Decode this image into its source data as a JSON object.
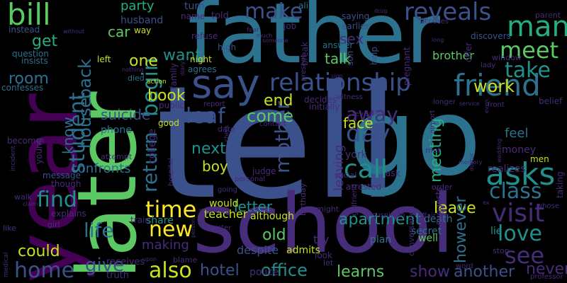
{
  "background": "#000000",
  "palette": {
    "purple": "#440154",
    "violet": "#472c7a",
    "indigo": "#3b518b",
    "blue": "#2c718e",
    "teal": "#21908d",
    "green": "#27ad81",
    "lime": "#5cc863",
    "yellow": "#c8e020",
    "bright_yellow": "#fde725"
  },
  "words": [
    {
      "text": "tell",
      "color": "#3b518b"
    },
    {
      "text": "go",
      "color": "#2c718e"
    },
    {
      "text": "father",
      "color": "#2c718e"
    },
    {
      "text": "year",
      "color": "#440154"
    },
    {
      "text": "later",
      "color": "#5cc863"
    },
    {
      "text": "school",
      "color": "#472c7a"
    },
    {
      "text": "say",
      "color": "#3b518b"
    },
    {
      "text": "bill",
      "color": "#5cc863"
    },
    {
      "text": "friend",
      "color": "#2c718e"
    },
    {
      "text": "relationship",
      "color": "#3b518b"
    },
    {
      "text": "asks",
      "color": "#21908d"
    },
    {
      "text": "reveals",
      "color": "#3b518b"
    },
    {
      "text": "man",
      "color": "#27ad81"
    },
    {
      "text": "make",
      "color": "#3b518b"
    },
    {
      "text": "meet",
      "color": "#5cc863"
    },
    {
      "text": "take",
      "color": "#21908d"
    },
    {
      "text": "day",
      "color": "#3b518b"
    },
    {
      "text": "call",
      "color": "#21908d"
    },
    {
      "text": "visit",
      "color": "#472c7a"
    },
    {
      "text": "class",
      "color": "#2c718e"
    },
    {
      "text": "love",
      "color": "#21908d"
    },
    {
      "text": "see",
      "color": "#472c7a"
    },
    {
      "text": "time",
      "color": "#fde725"
    },
    {
      "text": "new",
      "color": "#fde725"
    },
    {
      "text": "life",
      "color": "#2c718e"
    },
    {
      "text": "home",
      "color": "#3b518b"
    },
    {
      "text": "find",
      "color": "#21908d"
    },
    {
      "text": "also",
      "color": "#c8e020"
    },
    {
      "text": "begin",
      "color": "#21908d"
    },
    {
      "text": "student",
      "color": "#2c718e"
    },
    {
      "text": "return",
      "color": "#2c718e"
    },
    {
      "text": "leaf",
      "color": "#3b518b"
    },
    {
      "text": "mother",
      "color": "#3b518b"
    },
    {
      "text": "away",
      "color": "#472c7a"
    },
    {
      "text": "come",
      "color": "#5cc863"
    },
    {
      "text": "end",
      "color": "#c8e020"
    },
    {
      "text": "book",
      "color": "#c8e020"
    },
    {
      "text": "one",
      "color": "#c8e020"
    },
    {
      "text": "back",
      "color": "#2c718e"
    },
    {
      "text": "house",
      "color": "#2c718e"
    },
    {
      "text": "give",
      "color": "#3b518b"
    },
    {
      "text": "could",
      "color": "#c8e020"
    },
    {
      "text": "hotel",
      "color": "#3b518b"
    },
    {
      "text": "office",
      "color": "#21908d"
    },
    {
      "text": "learns",
      "color": "#5cc863"
    },
    {
      "text": "show",
      "color": "#472c7a"
    },
    {
      "text": "another",
      "color": "#3b518b"
    },
    {
      "text": "never",
      "color": "#472c7a"
    },
    {
      "text": "leave",
      "color": "#c8e020"
    },
    {
      "text": "apartment",
      "color": "#21908d"
    },
    {
      "text": "however",
      "color": "#2c718e"
    },
    {
      "text": "meeting",
      "color": "#27ad81"
    },
    {
      "text": "leaving",
      "color": "#472c7a"
    },
    {
      "text": "work",
      "color": "#c8e020"
    },
    {
      "text": "want",
      "color": "#21908d"
    },
    {
      "text": "next",
      "color": "#21908d"
    },
    {
      "text": "boy",
      "color": "#c8e020"
    },
    {
      "text": "letter",
      "color": "#21908d"
    },
    {
      "text": "old",
      "color": "#5cc863"
    },
    {
      "text": "face",
      "color": "#c8e020"
    },
    {
      "text": "talk",
      "color": "#5cc863"
    },
    {
      "text": "sex",
      "color": "#472c7a"
    },
    {
      "text": "car",
      "color": "#5cc863"
    },
    {
      "text": "get",
      "color": "#27ad81"
    },
    {
      "text": "room",
      "color": "#2c718e"
    },
    {
      "text": "know",
      "color": "#2c718e"
    },
    {
      "text": "suicide",
      "color": "#3b518b"
    },
    {
      "text": "confronts",
      "color": "#2c718e"
    },
    {
      "text": "party",
      "color": "#27ad81"
    },
    {
      "text": "share",
      "color": "#21908d"
    },
    {
      "text": "college",
      "color": "#472c7a"
    },
    {
      "text": "making",
      "color": "#472c7a"
    },
    {
      "text": "feel",
      "color": "#2c718e"
    },
    {
      "text": "money",
      "color": "#472c7a"
    },
    {
      "text": "realizes",
      "color": "#472c7a"
    },
    {
      "text": "lie",
      "color": "#21908d"
    },
    {
      "text": "death",
      "color": "#2c718e"
    },
    {
      "text": "secret",
      "color": "#2c718e"
    },
    {
      "text": "admits",
      "color": "#c8e020"
    },
    {
      "text": "despite",
      "color": "#3b518b"
    },
    {
      "text": "well",
      "color": "#5cc863"
    },
    {
      "text": "plan",
      "color": "#2c718e"
    },
    {
      "text": "try",
      "color": "#472c7a"
    },
    {
      "text": "police",
      "color": "#472c7a"
    },
    {
      "text": "truth",
      "color": "#472c7a"
    },
    {
      "text": "receives",
      "color": "#472c7a"
    },
    {
      "text": "teacher",
      "color": "#c8e020"
    },
    {
      "text": "would",
      "color": "#c8e020"
    },
    {
      "text": "although",
      "color": "#c8e020"
    },
    {
      "text": "phone",
      "color": "#2c718e"
    },
    {
      "text": "brother",
      "color": "#5cc863"
    },
    {
      "text": "husband",
      "color": "#3b518b"
    },
    {
      "text": "turn",
      "color": "#3b518b"
    },
    {
      "text": "name",
      "color": "#472c7a"
    },
    {
      "text": "told",
      "color": "#472c7a"
    },
    {
      "text": "ali",
      "color": "#2c718e"
    },
    {
      "text": "saying",
      "color": "#3b518b"
    },
    {
      "text": "earlier",
      "color": "#3b518b"
    },
    {
      "text": "refuse",
      "color": "#472c7a"
    },
    {
      "text": "high",
      "color": "#3b518b"
    },
    {
      "text": "night",
      "color": "#c8e020"
    },
    {
      "text": "agrees",
      "color": "#2c718e"
    },
    {
      "text": "job",
      "color": "#472c7a"
    },
    {
      "text": "answer",
      "color": "#2c718e"
    },
    {
      "text": "break",
      "color": "#472c7a"
    },
    {
      "text": "present",
      "color": "#472c7a"
    },
    {
      "text": "son",
      "color": "#3b518b"
    },
    {
      "text": "help",
      "color": "#3b518b"
    },
    {
      "text": "pregnant",
      "color": "#472c7a"
    },
    {
      "text": "offer",
      "color": "#472c7a"
    },
    {
      "text": "discovers",
      "color": "#3b518b"
    },
    {
      "text": "window",
      "color": "#472c7a"
    },
    {
      "text": "parent",
      "color": "#472c7a"
    },
    {
      "text": "belief",
      "color": "#472c7a"
    },
    {
      "text": "instead",
      "color": "#3b518b"
    },
    {
      "text": "question",
      "color": "#2c718e"
    },
    {
      "text": "insists",
      "color": "#2c718e"
    },
    {
      "text": "confesses",
      "color": "#2c718e"
    },
    {
      "text": "become",
      "color": "#472c7a"
    },
    {
      "text": "young",
      "color": "#472c7a"
    },
    {
      "text": "message",
      "color": "#3b518b"
    },
    {
      "text": "though",
      "color": "#472c7a"
    },
    {
      "text": "walk",
      "color": "#472c7a"
    },
    {
      "text": "explains",
      "color": "#472c7a"
    },
    {
      "text": "girl",
      "color": "#472c7a"
    },
    {
      "text": "like",
      "color": "#472c7a"
    },
    {
      "text": "left",
      "color": "#c8e020"
    },
    {
      "text": "died",
      "color": "#2c718e"
    },
    {
      "text": "way",
      "color": "#c8e020"
    },
    {
      "text": "family",
      "color": "#472c7a"
    },
    {
      "text": "public",
      "color": "#472c7a"
    },
    {
      "text": "good",
      "color": "#c8e020"
    },
    {
      "text": "attempt",
      "color": "#472c7a"
    },
    {
      "text": "date",
      "color": "#472c7a"
    },
    {
      "text": "contact",
      "color": "#472c7a"
    },
    {
      "text": "report",
      "color": "#472c7a"
    },
    {
      "text": "decides",
      "color": "#472c7a"
    },
    {
      "text": "initially",
      "color": "#472c7a"
    },
    {
      "text": "witness",
      "color": "#472c7a"
    },
    {
      "text": "reveal",
      "color": "#472c7a"
    },
    {
      "text": "york",
      "color": "#472c7a"
    },
    {
      "text": "ask",
      "color": "#472c7a"
    },
    {
      "text": "judge",
      "color": "#472c7a"
    },
    {
      "text": "arrested",
      "color": "#472c7a"
    },
    {
      "text": "social",
      "color": "#472c7a"
    },
    {
      "text": "personal",
      "color": "#472c7a"
    },
    {
      "text": "going",
      "color": "#472c7a"
    },
    {
      "text": "hospital",
      "color": "#472c7a"
    },
    {
      "text": "train",
      "color": "#472c7a"
    },
    {
      "text": "working",
      "color": "#472c7a"
    },
    {
      "text": "blame",
      "color": "#472c7a"
    },
    {
      "text": "sister",
      "color": "#472c7a"
    },
    {
      "text": "might",
      "color": "#472c7a"
    },
    {
      "text": "birthday",
      "color": "#472c7a"
    },
    {
      "text": "girlfriend",
      "color": "#472c7a"
    },
    {
      "text": "look",
      "color": "#472c7a"
    },
    {
      "text": "let",
      "color": "#472c7a"
    },
    {
      "text": "conversation",
      "color": "#472c7a"
    },
    {
      "text": "suspicion",
      "color": "#472c7a"
    },
    {
      "text": "affair",
      "color": "#472c7a"
    },
    {
      "text": "order",
      "color": "#472c7a"
    },
    {
      "text": "met",
      "color": "#472c7a"
    },
    {
      "text": "suggests",
      "color": "#472c7a"
    },
    {
      "text": "men",
      "color": "#c8e020"
    },
    {
      "text": "taking",
      "color": "#472c7a"
    },
    {
      "text": "whose",
      "color": "#472c7a"
    },
    {
      "text": "stop",
      "color": "#472c7a"
    },
    {
      "text": "word",
      "color": "#472c7a"
    },
    {
      "text": "professor",
      "color": "#472c7a"
    },
    {
      "text": "longer",
      "color": "#472c7a"
    },
    {
      "text": "front",
      "color": "#472c7a"
    },
    {
      "text": "airport",
      "color": "#472c7a"
    },
    {
      "text": "accuses",
      "color": "#472c7a"
    },
    {
      "text": "lady",
      "color": "#472c7a"
    },
    {
      "text": "action",
      "color": "#c8e020"
    },
    {
      "text": "incident",
      "color": "#472c7a"
    },
    {
      "text": "claim",
      "color": "#472c7a"
    },
    {
      "text": "medical",
      "color": "#472c7a"
    },
    {
      "text": "upon",
      "color": "#472c7a"
    },
    {
      "text": "person",
      "color": "#472c7a"
    },
    {
      "text": "check",
      "color": "#472c7a"
    },
    {
      "text": "fear",
      "color": "#472c7a"
    },
    {
      "text": "much",
      "color": "#472c7a"
    },
    {
      "text": "someone",
      "color": "#472c7a"
    },
    {
      "text": "drug",
      "color": "#472c7a"
    },
    {
      "text": "nothing",
      "color": "#472c7a"
    },
    {
      "text": "diary",
      "color": "#472c7a"
    },
    {
      "text": "without",
      "color": "#472c7a"
    },
    {
      "text": "sign",
      "color": "#472c7a"
    },
    {
      "text": "memory",
      "color": "#472c7a"
    },
    {
      "text": "doctor",
      "color": "#472c7a"
    },
    {
      "text": "even",
      "color": "#472c7a"
    },
    {
      "text": "service",
      "color": "#472c7a"
    },
    {
      "text": "ex",
      "color": "#472c7a"
    },
    {
      "text": "wedding",
      "color": "#472c7a"
    },
    {
      "text": "long",
      "color": "#472c7a"
    }
  ]
}
